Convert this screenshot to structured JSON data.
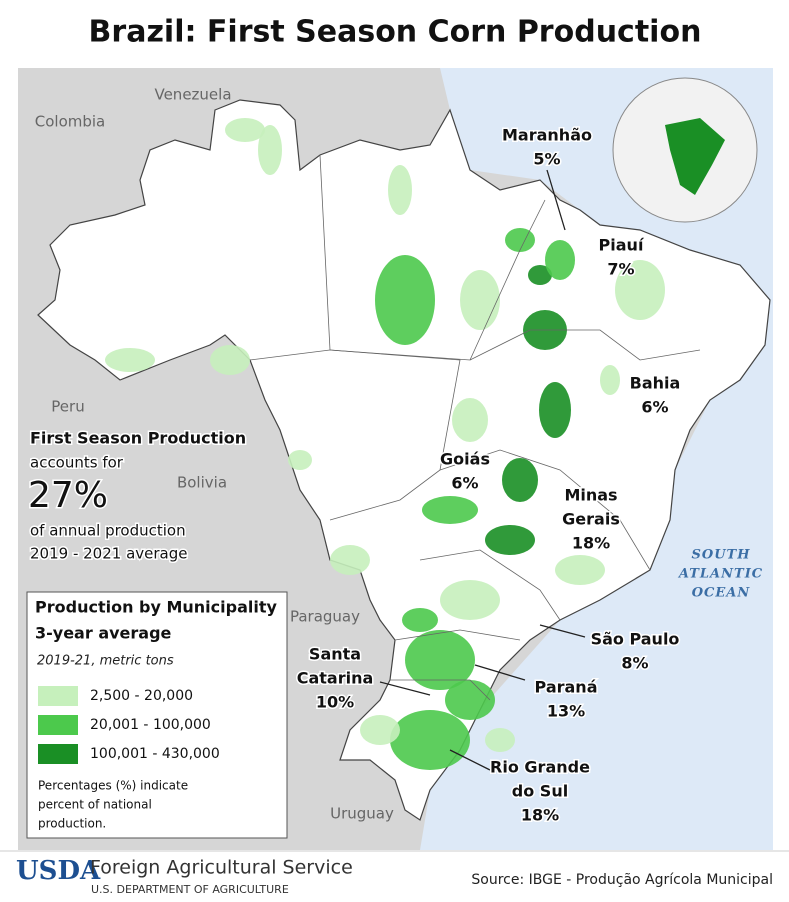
{
  "title": "Brazil: First Season Corn Production",
  "countries": [
    "Venezuela",
    "Colombia",
    "Peru",
    "Bolivia",
    "Paraguay",
    "Uruguay"
  ],
  "ocean": [
    "SOUTH",
    "ATLANTIC",
    "OCEAN"
  ],
  "states": [
    {
      "name_lines": [
        "Maranhão"
      ],
      "share": "5%"
    },
    {
      "name_lines": [
        "Piauí"
      ],
      "share": "7%"
    },
    {
      "name_lines": [
        "Bahia"
      ],
      "share": "6%"
    },
    {
      "name_lines": [
        "Goiás"
      ],
      "share": "6%"
    },
    {
      "name_lines": [
        "Minas",
        "Gerais"
      ],
      "share": "18%"
    },
    {
      "name_lines": [
        "São Paulo"
      ],
      "share": "8%"
    },
    {
      "name_lines": [
        "Paraná"
      ],
      "share": "13%"
    },
    {
      "name_lines": [
        "Santa",
        "Catarina"
      ],
      "share": "10%"
    },
    {
      "name_lines": [
        "Rio Grande",
        "do Sul"
      ],
      "share": "18%"
    }
  ],
  "summary": {
    "heading": "First Season Production",
    "before": "accounts for",
    "share": "27%",
    "after": [
      "of annual production",
      "2019 - 2021 average"
    ]
  },
  "legend": {
    "title_lines": [
      "Production by Municipality",
      "3-year average"
    ],
    "subtitle": "2019-21, metric tons",
    "items": [
      {
        "label": "2,500 - 20,000",
        "color": "#c6f0bc"
      },
      {
        "label": "20,001 - 100,000",
        "color": "#4cc94c"
      },
      {
        "label": "100,001 - 430,000",
        "color": "#1a8f25"
      }
    ],
    "note_lines": [
      "Percentages (%) indicate",
      "percent of national",
      "production."
    ]
  },
  "footer": {
    "logo": "USDA",
    "agency": "Foreign Agricultural Service",
    "department": "U.S. DEPARTMENT OF AGRICULTURE",
    "source": "Source: IBGE - Produção Agrícola Municipal"
  }
}
